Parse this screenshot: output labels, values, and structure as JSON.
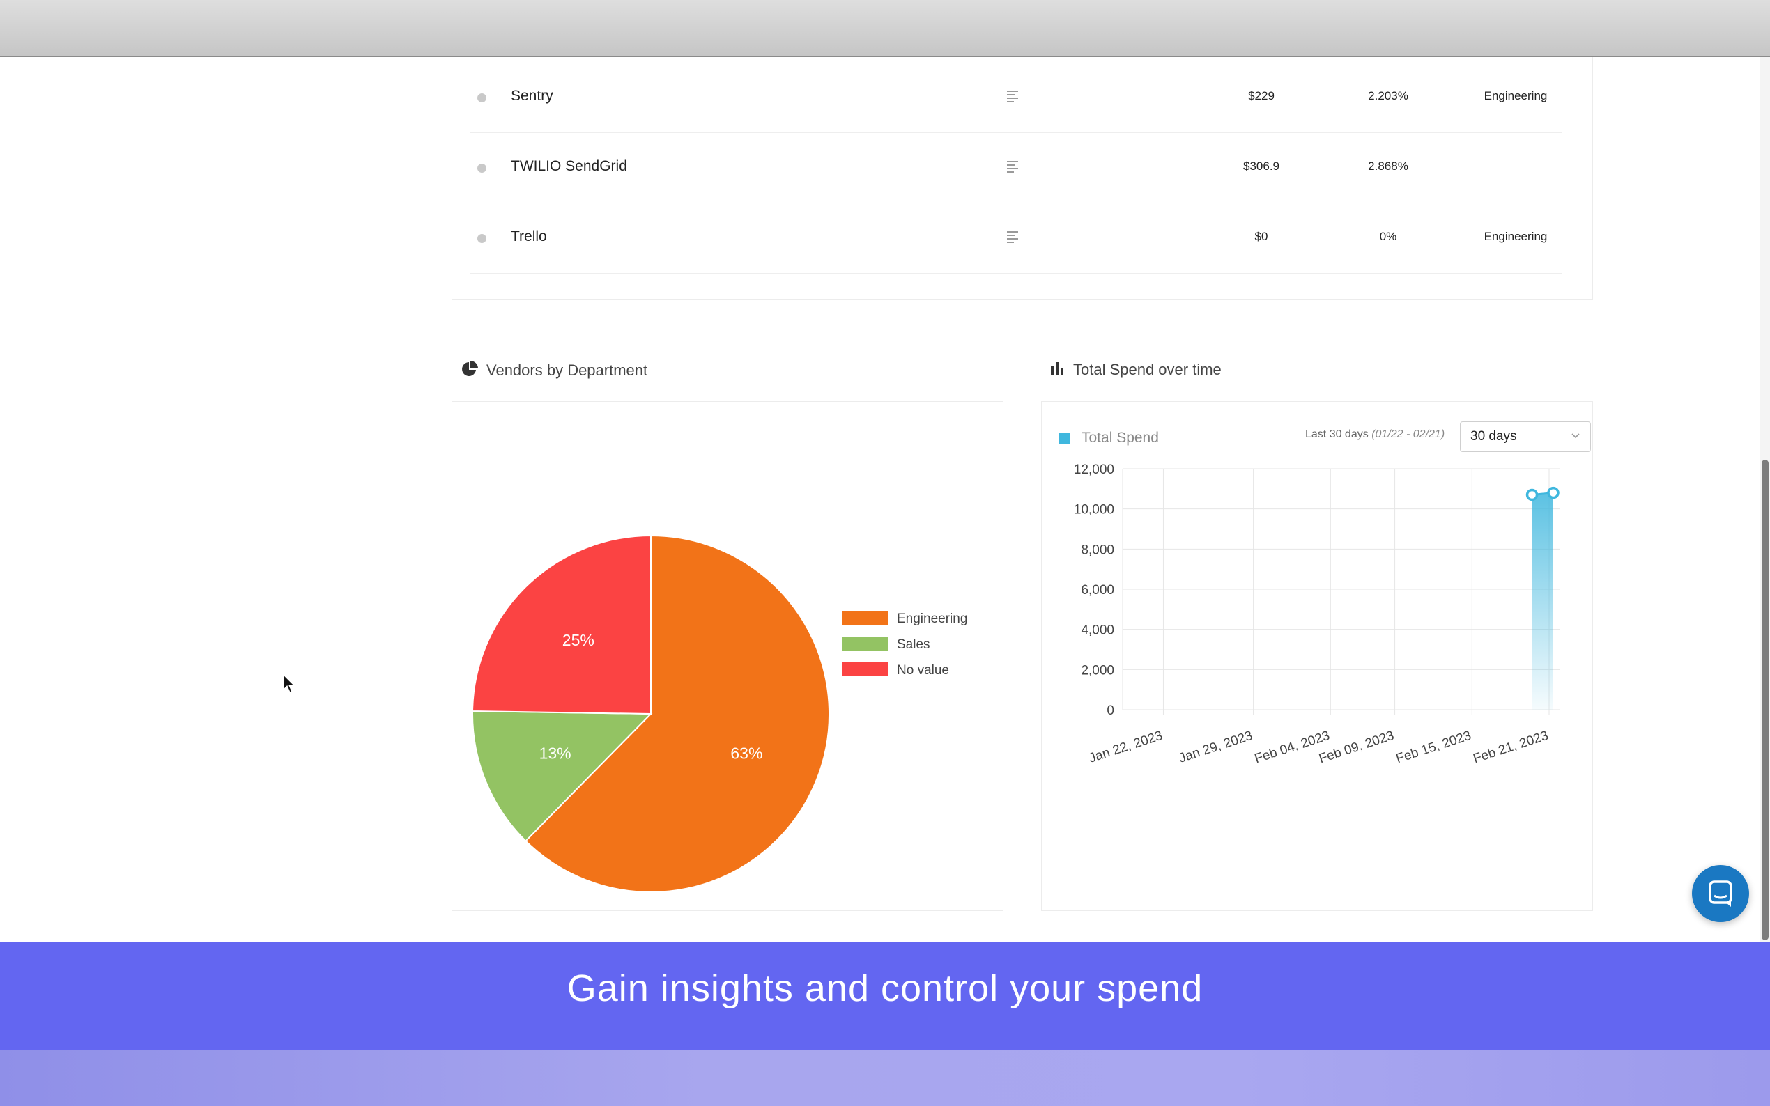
{
  "vendors": [
    {
      "name": "Sentry",
      "cost": "$229",
      "percent": "2.203%",
      "department": "Engineering"
    },
    {
      "name": "TWILIO SendGrid",
      "cost": "$306.9",
      "percent": "2.868%",
      "department": ""
    },
    {
      "name": "Trello",
      "cost": "$0",
      "percent": "0%",
      "department": "Engineering"
    }
  ],
  "pie_section": {
    "title": "Vendors by Department",
    "icon": "pie-chart-icon"
  },
  "spend_section": {
    "title": "Total Spend over time",
    "icon": "bar-chart-icon",
    "legend": "Total Spend",
    "range_text": "Last 30 days",
    "range_dates": "(01/22 - 02/21)",
    "select_value": "30 days"
  },
  "chart_data": [
    {
      "type": "pie",
      "labels": [
        "Engineering",
        "Sales",
        "No value"
      ],
      "values": [
        63,
        13,
        25
      ],
      "slice_labels": [
        "63%",
        "13%",
        "25%"
      ],
      "colors": [
        "#f27318",
        "#93c363",
        "#fb4343"
      ],
      "legend_position": "right"
    },
    {
      "type": "area",
      "series": [
        {
          "name": "Total Spend",
          "x": [
            "Feb 20, 2023",
            "Feb 21, 2023"
          ],
          "values": [
            10700,
            10800
          ]
        }
      ],
      "x_ticks": [
        "Jan 22, 2023",
        "Jan 29, 2023",
        "Feb 04, 2023",
        "Feb 09, 2023",
        "Feb 15, 2023",
        "Feb 21, 2023"
      ],
      "y_ticks": [
        "0",
        "2,000",
        "4,000",
        "6,000",
        "8,000",
        "10,000",
        "12,000"
      ],
      "ylim": [
        0,
        12000
      ],
      "grid": true,
      "color": "#3fb7de"
    }
  ],
  "banner": {
    "headline": "Gain insights and control your spend"
  }
}
